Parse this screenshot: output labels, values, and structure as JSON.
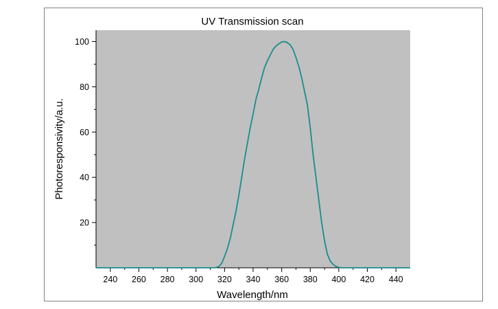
{
  "chart_data": {
    "type": "line",
    "title": "UV Transmission scan",
    "xlabel": "Wavelength/nm",
    "ylabel": "Photoresponsivity/a.u.",
    "xlim": [
      230,
      450
    ],
    "ylim": [
      0,
      105
    ],
    "x_ticks": [
      240,
      260,
      280,
      300,
      320,
      340,
      360,
      380,
      400,
      420,
      440
    ],
    "y_ticks": [
      20,
      40,
      60,
      80,
      100
    ],
    "grid": false,
    "legend": "none",
    "plot_background": "#c0c0c0",
    "line_color": "#1a8c8c",
    "series": [
      {
        "x": [
          230,
          240,
          250,
          260,
          270,
          280,
          290,
          300,
          310,
          313,
          316,
          318,
          320,
          322,
          324,
          326,
          328,
          330,
          332,
          334,
          336,
          338,
          340,
          342,
          344,
          346,
          348,
          350,
          352,
          354,
          356,
          358,
          360,
          362,
          364,
          366,
          368,
          370,
          372,
          374,
          376,
          378,
          380,
          382,
          384,
          386,
          388,
          390,
          392,
          394,
          396,
          398,
          400,
          402,
          405,
          410,
          420,
          430,
          440,
          450
        ],
        "y": [
          0,
          0,
          0,
          0,
          0,
          0,
          0,
          0,
          0,
          0,
          0.5,
          2,
          5,
          8.5,
          13,
          19,
          25,
          32,
          40,
          48,
          55,
          62,
          68,
          74.5,
          79,
          84,
          88.5,
          91.5,
          94,
          96.5,
          98,
          99,
          99.8,
          100,
          99.5,
          98.5,
          96.5,
          93,
          89,
          84,
          78,
          72,
          62,
          50,
          40,
          30,
          20,
          12,
          6,
          3,
          1.5,
          0.6,
          0.2,
          0,
          0,
          0,
          0,
          0,
          0,
          0
        ]
      }
    ]
  }
}
